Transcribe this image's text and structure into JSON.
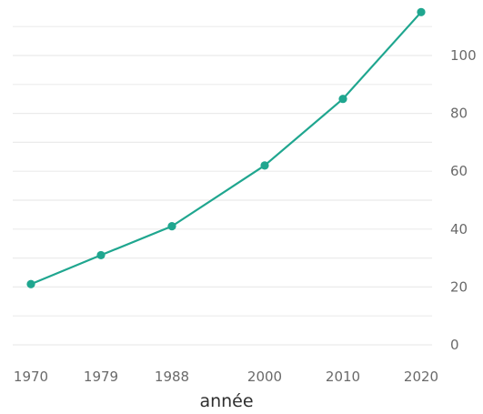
{
  "chart_data": {
    "type": "line",
    "xlabel": "année",
    "ylabel": "",
    "x": [
      1970,
      1979,
      1988,
      2000,
      2010,
      2020
    ],
    "series": [
      {
        "values": [
          21,
          31,
          41,
          62,
          85,
          115
        ],
        "color": "#1fa68f"
      }
    ],
    "xticks": [
      "1970",
      "1979",
      "1988",
      "2000",
      "2010",
      "2020"
    ],
    "yticks": [
      0,
      20,
      40,
      60,
      80,
      100
    ],
    "ylim": [
      0,
      115
    ],
    "y_axis_side": "right",
    "grid": true,
    "legend": "none"
  }
}
